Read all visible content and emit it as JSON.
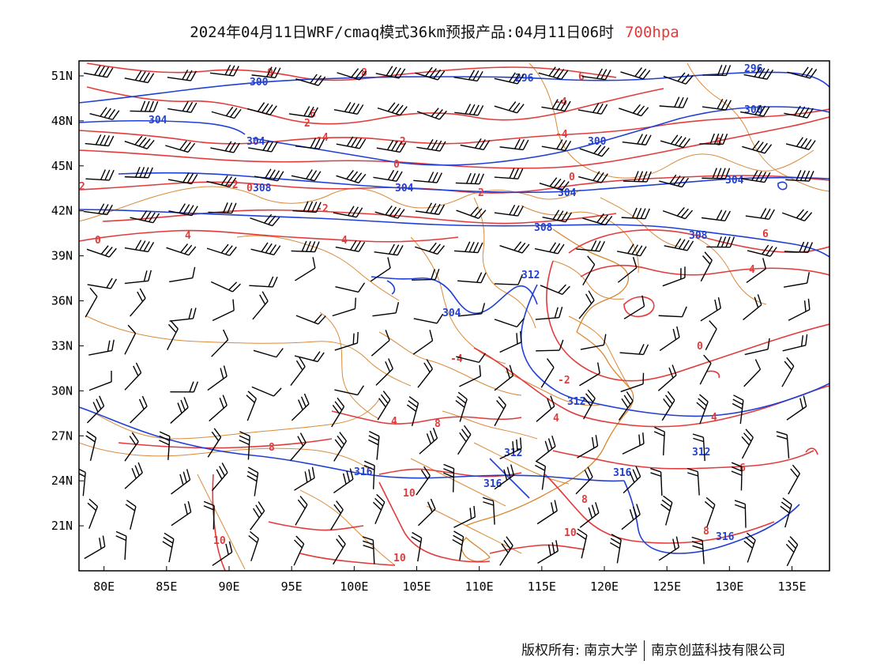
{
  "title": {
    "text": "2024年04月11日WRF/cmaq模式36km预报产品:04月11日06时",
    "level": "700hpa",
    "level_color": "#e23b3b"
  },
  "map": {
    "lon_ticks": [
      "80E",
      "85E",
      "90E",
      "95E",
      "100E",
      "105E",
      "110E",
      "115E",
      "120E",
      "125E",
      "130E",
      "135E"
    ],
    "lat_ticks": [
      "51N",
      "48N",
      "45N",
      "42N",
      "39N",
      "36N",
      "33N",
      "30N",
      "27N",
      "24N",
      "21N"
    ],
    "lon_range": [
      78,
      138
    ],
    "lat_range": [
      18,
      52
    ],
    "colors": {
      "temperature": "#e23b3b",
      "geopotential": "#1f3fd6",
      "boundary": "#d98a3a",
      "wind": "#000000"
    },
    "temperature_labels": [
      "0",
      "8",
      "6",
      "-4",
      "-2",
      "0",
      "0",
      "-2",
      "2",
      "-4",
      "2",
      "0",
      "-2",
      "4",
      "0",
      "2",
      "4",
      "-4",
      "4",
      "6",
      "8",
      "6",
      "4",
      "-4",
      "0",
      "4",
      "10",
      "8",
      "10",
      "10",
      "8",
      "-2",
      "4",
      "6",
      "8",
      "10",
      "8"
    ],
    "geopotential_labels": [
      "300",
      "296",
      "296",
      "304",
      "304",
      "300",
      "300",
      "304",
      "304",
      "308",
      "304",
      "308",
      "304",
      "308",
      "312",
      "312",
      "312",
      "316",
      "316",
      "312",
      "316",
      "316"
    ]
  },
  "footer": {
    "left": "版权所有: 南京大学",
    "right": "南京创蓝科技有限公司"
  }
}
